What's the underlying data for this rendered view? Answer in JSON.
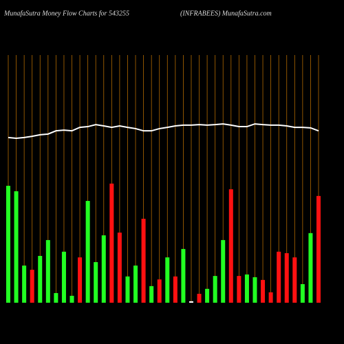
{
  "chart_data": {
    "type": "bar",
    "title": "MunafaSutra  Money Flow  Charts for 543255",
    "subtitle": "(INFRABEES) MunafaSutra.com",
    "ylim": [
      0,
      100
    ],
    "series": [
      {
        "type": "bar",
        "values": [
          47.2,
          45,
          15,
          13.3,
          18.9,
          25.3,
          3.9,
          20.6,
          2.8,
          18.3,
          41.1,
          16.4,
          27.2,
          48.1,
          28.3,
          10.6,
          15,
          33.9,
          6.7,
          9.4,
          18.3,
          10.6,
          21.7,
          0.6,
          3.6,
          5.6,
          10.8,
          25.3,
          45.8,
          10.8,
          11.4,
          10.3,
          9.2,
          4.2,
          20.6,
          20,
          18.3,
          7.5,
          28.1,
          43.1
        ],
        "colors": [
          "#22ff22",
          "#22ff22",
          "#22ff22",
          "#ff1111",
          "#22ff22",
          "#22ff22",
          "#22ff22",
          "#22ff22",
          "#22ff22",
          "#ff1111",
          "#22ff22",
          "#22ff22",
          "#22ff22",
          "#ff1111",
          "#ff1111",
          "#22ff22",
          "#22ff22",
          "#ff1111",
          "#22ff22",
          "#ff1111",
          "#22ff22",
          "#ff1111",
          "#22ff22",
          "#ffffff",
          "#ff1111",
          "#22ff22",
          "#22ff22",
          "#22ff22",
          "#ff1111",
          "#ff1111",
          "#22ff22",
          "#22ff22",
          "#ff1111",
          "#ff1111",
          "#ff1111",
          "#ff1111",
          "#ff1111",
          "#22ff22",
          "#22ff22",
          "#ff1111"
        ]
      },
      {
        "type": "line",
        "color": "#ffffff",
        "values": [
          66.7,
          66.4,
          66.7,
          67.2,
          67.8,
          68.1,
          69.4,
          69.7,
          69.4,
          70.8,
          71.1,
          71.9,
          71.4,
          70.8,
          71.4,
          70.8,
          70.3,
          69.4,
          69.4,
          70.3,
          70.8,
          71.4,
          71.7,
          71.7,
          71.9,
          71.7,
          71.9,
          72.2,
          71.7,
          71.1,
          71.1,
          72.2,
          71.9,
          71.7,
          71.7,
          71.4,
          70.8,
          70.8,
          70.6,
          69.4
        ]
      }
    ],
    "grid_color": "#b36a00"
  }
}
